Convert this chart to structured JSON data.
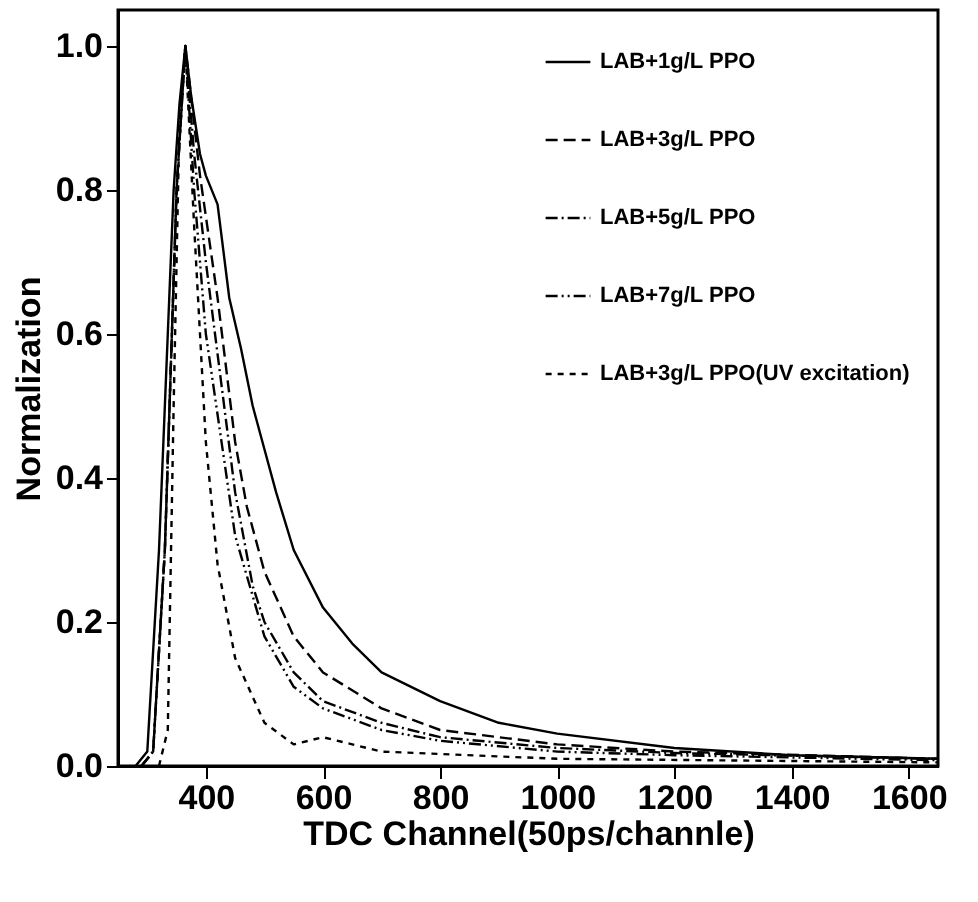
{
  "chart_data": {
    "type": "line",
    "xlabel": "TDC Channel(50ps/channle)",
    "ylabel": "Normalization",
    "xlim": [
      250,
      1650
    ],
    "ylim": [
      0,
      1.05
    ],
    "xticks": [
      400,
      600,
      800,
      1000,
      1200,
      1400,
      1600
    ],
    "yticks": [
      {
        "value": 0,
        "label": "0.0"
      },
      {
        "value": 0.2,
        "label": "0.2"
      },
      {
        "value": 0.4,
        "label": "0.4"
      },
      {
        "value": 0.6,
        "label": "0.6"
      },
      {
        "value": 0.8,
        "label": "0.8"
      },
      {
        "value": 1.0,
        "label": "1.0"
      }
    ],
    "legend": "top right",
    "grid": false,
    "series": [
      {
        "name": "LAB+1g/L PPO",
        "color": "#000000",
        "line_style": "solid",
        "x": [
          280,
          300,
          320,
          335,
          345,
          355,
          365,
          375,
          390,
          400,
          420,
          440,
          460,
          480,
          500,
          520,
          550,
          600,
          650,
          700,
          800,
          900,
          1000,
          1200,
          1400,
          1650
        ],
        "values": [
          0,
          0.02,
          0.3,
          0.6,
          0.8,
          0.92,
          1.0,
          0.93,
          0.85,
          0.82,
          0.78,
          0.65,
          0.58,
          0.5,
          0.44,
          0.38,
          0.3,
          0.22,
          0.17,
          0.13,
          0.09,
          0.06,
          0.045,
          0.025,
          0.015,
          0.01
        ]
      },
      {
        "name": "LAB+3g/L PPO",
        "color": "#000000",
        "line_style": "dashed",
        "x": [
          290,
          310,
          330,
          350,
          365,
          390,
          420,
          450,
          470,
          500,
          550,
          600,
          700,
          800,
          1000,
          1200,
          1650
        ],
        "values": [
          0,
          0.02,
          0.3,
          0.8,
          1.0,
          0.82,
          0.65,
          0.45,
          0.36,
          0.27,
          0.18,
          0.13,
          0.08,
          0.05,
          0.03,
          0.02,
          0.01
        ]
      },
      {
        "name": "LAB+5g/L PPO",
        "color": "#000000",
        "line_style": "dotted",
        "x": [
          290,
          310,
          330,
          350,
          365,
          380,
          400,
          450,
          480,
          500,
          550,
          600,
          700,
          800,
          1000,
          1200,
          1650
        ],
        "values": [
          0,
          0.02,
          0.3,
          0.8,
          1.0,
          0.85,
          0.7,
          0.38,
          0.25,
          0.2,
          0.13,
          0.09,
          0.06,
          0.04,
          0.025,
          0.018,
          0.01
        ]
      },
      {
        "name": "LAB+7g/L PPO",
        "color": "#000000",
        "line_style": "dotted",
        "x": [
          290,
          310,
          330,
          350,
          365,
          380,
          400,
          450,
          500,
          550,
          600,
          700,
          800,
          1000,
          1200,
          1650
        ],
        "values": [
          0,
          0.02,
          0.3,
          0.8,
          1.0,
          0.8,
          0.6,
          0.32,
          0.18,
          0.11,
          0.08,
          0.05,
          0.035,
          0.02,
          0.015,
          0.008
        ]
      },
      {
        "name": "LAB+3g/L PPO(UV excitation)",
        "color": "#000000",
        "line_style": "dashed",
        "x": [
          320,
          335,
          345,
          355,
          365,
          380,
          400,
          420,
          450,
          500,
          550,
          600,
          650,
          700,
          1000,
          1650
        ],
        "values": [
          0,
          0.05,
          0.5,
          0.9,
          1.0,
          0.75,
          0.45,
          0.28,
          0.15,
          0.06,
          0.03,
          0.04,
          0.03,
          0.02,
          0.01,
          0.005
        ]
      }
    ]
  }
}
